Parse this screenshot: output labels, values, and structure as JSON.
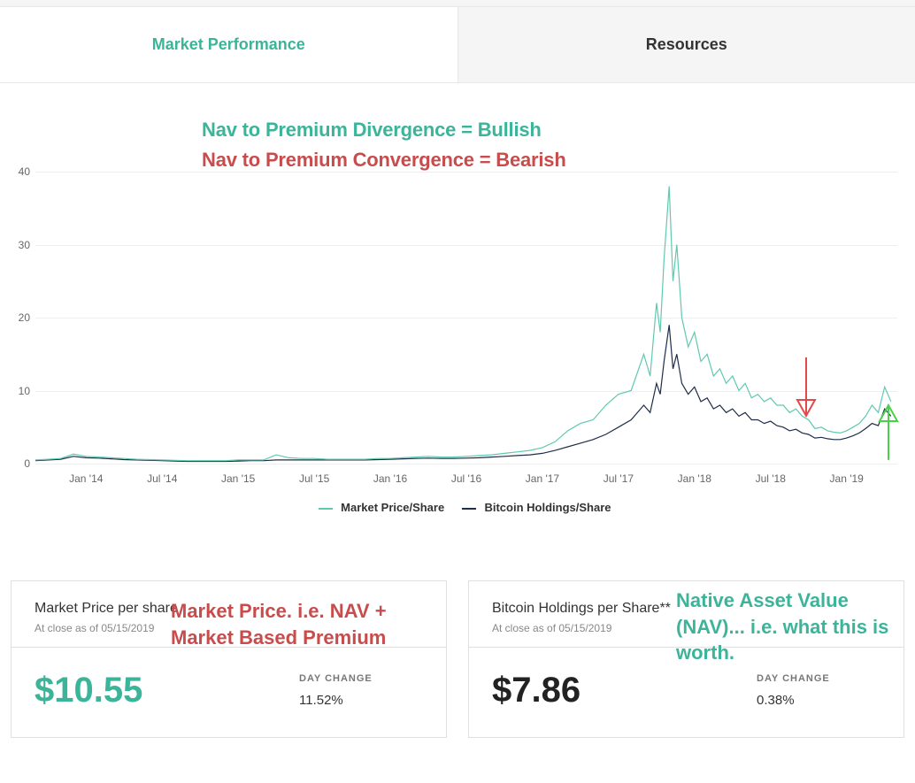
{
  "tabs": {
    "active": "Market Performance",
    "inactive": "Resources"
  },
  "annotations": {
    "bullish": "Nav to Premium Divergence = Bullish",
    "bearish": "Nav to Premium Convergence = Bearish",
    "market_price_note": "Market Price. i.e. NAV + Market Based Premium",
    "nav_note": "Native Asset Value (NAV)... i.e. what this is worth."
  },
  "annotation_colors": {
    "bullish": "#3cb49a",
    "bearish": "#c94c4c",
    "market_price_note": "#c94c4c",
    "nav_note": "#3cb49a"
  },
  "chart": {
    "type": "line",
    "ylim": [
      0,
      40
    ],
    "yticks": [
      0,
      10,
      20,
      30,
      40
    ],
    "x_labels": [
      "Jan '14",
      "Jul '14",
      "Jan '15",
      "Jul '15",
      "Jan '16",
      "Jul '16",
      "Jan '17",
      "Jul '17",
      "Jan '18",
      "Jul '18",
      "Jan '19"
    ],
    "x_span_months": 68,
    "grid_color": "#eeeeee",
    "axis_label_color": "#666666",
    "axis_label_fontsize": 12,
    "background_color": "#ffffff",
    "legend": [
      {
        "label": "Market Price/Share",
        "color": "#5fc9af"
      },
      {
        "label": "Bitcoin Holdings/Share",
        "color": "#1f2d4a"
      }
    ],
    "legend_fontsize": 13,
    "series": {
      "market_price": {
        "color": "#5fc9af",
        "stroke_width": 1.2,
        "data": [
          [
            0,
            0.5
          ],
          [
            1,
            0.6
          ],
          [
            2,
            0.7
          ],
          [
            3,
            1.3
          ],
          [
            4,
            1.0
          ],
          [
            5,
            0.9
          ],
          [
            6,
            0.8
          ],
          [
            7,
            0.7
          ],
          [
            8,
            0.6
          ],
          [
            9,
            0.55
          ],
          [
            10,
            0.5
          ],
          [
            11,
            0.45
          ],
          [
            12,
            0.4
          ],
          [
            13,
            0.4
          ],
          [
            14,
            0.4
          ],
          [
            15,
            0.4
          ],
          [
            16,
            0.5
          ],
          [
            17,
            0.5
          ],
          [
            18,
            0.5
          ],
          [
            19,
            1.2
          ],
          [
            20,
            0.8
          ],
          [
            21,
            0.7
          ],
          [
            22,
            0.7
          ],
          [
            23,
            0.6
          ],
          [
            24,
            0.6
          ],
          [
            25,
            0.6
          ],
          [
            26,
            0.6
          ],
          [
            27,
            0.7
          ],
          [
            28,
            0.7
          ],
          [
            29,
            0.8
          ],
          [
            30,
            0.9
          ],
          [
            31,
            1.0
          ],
          [
            32,
            0.9
          ],
          [
            33,
            0.9
          ],
          [
            34,
            1.0
          ],
          [
            35,
            1.1
          ],
          [
            36,
            1.2
          ],
          [
            37,
            1.4
          ],
          [
            38,
            1.6
          ],
          [
            39,
            1.8
          ],
          [
            40,
            2.2
          ],
          [
            41,
            3.0
          ],
          [
            42,
            4.5
          ],
          [
            43,
            5.5
          ],
          [
            44,
            6.0
          ],
          [
            45,
            8.0
          ],
          [
            46,
            9.5
          ],
          [
            47,
            10.0
          ],
          [
            48,
            15.0
          ],
          [
            48.5,
            12.0
          ],
          [
            49,
            22.0
          ],
          [
            49.3,
            18.0
          ],
          [
            49.6,
            28.0
          ],
          [
            50,
            38.0
          ],
          [
            50.3,
            25.0
          ],
          [
            50.6,
            30.0
          ],
          [
            51,
            20.0
          ],
          [
            51.5,
            16.0
          ],
          [
            52,
            18.0
          ],
          [
            52.5,
            14.0
          ],
          [
            53,
            15.0
          ],
          [
            53.5,
            12.0
          ],
          [
            54,
            13.0
          ],
          [
            54.5,
            11.0
          ],
          [
            55,
            12.0
          ],
          [
            55.5,
            10.0
          ],
          [
            56,
            11.0
          ],
          [
            56.5,
            9.0
          ],
          [
            57,
            9.5
          ],
          [
            57.5,
            8.5
          ],
          [
            58,
            9.0
          ],
          [
            58.5,
            8.0
          ],
          [
            59,
            8.0
          ],
          [
            59.5,
            7.0
          ],
          [
            60,
            7.5
          ],
          [
            60.5,
            6.5
          ],
          [
            61,
            6.0
          ],
          [
            61.5,
            4.8
          ],
          [
            62,
            5.0
          ],
          [
            62.5,
            4.5
          ],
          [
            63,
            4.3
          ],
          [
            63.5,
            4.2
          ],
          [
            64,
            4.5
          ],
          [
            64.5,
            5.0
          ],
          [
            65,
            5.5
          ],
          [
            65.5,
            6.5
          ],
          [
            66,
            8.0
          ],
          [
            66.5,
            7.0
          ],
          [
            67,
            10.5
          ],
          [
            67.5,
            8.5
          ]
        ]
      },
      "holdings": {
        "color": "#1f2d4a",
        "stroke_width": 1.2,
        "data": [
          [
            0,
            0.4
          ],
          [
            1,
            0.5
          ],
          [
            2,
            0.6
          ],
          [
            3,
            1.0
          ],
          [
            4,
            0.8
          ],
          [
            5,
            0.75
          ],
          [
            6,
            0.65
          ],
          [
            7,
            0.55
          ],
          [
            8,
            0.5
          ],
          [
            9,
            0.45
          ],
          [
            10,
            0.4
          ],
          [
            11,
            0.35
          ],
          [
            12,
            0.3
          ],
          [
            13,
            0.3
          ],
          [
            14,
            0.3
          ],
          [
            15,
            0.3
          ],
          [
            16,
            0.35
          ],
          [
            17,
            0.4
          ],
          [
            18,
            0.4
          ],
          [
            19,
            0.5
          ],
          [
            20,
            0.5
          ],
          [
            21,
            0.5
          ],
          [
            22,
            0.5
          ],
          [
            23,
            0.5
          ],
          [
            24,
            0.5
          ],
          [
            25,
            0.5
          ],
          [
            26,
            0.5
          ],
          [
            27,
            0.55
          ],
          [
            28,
            0.6
          ],
          [
            29,
            0.65
          ],
          [
            30,
            0.7
          ],
          [
            31,
            0.75
          ],
          [
            32,
            0.7
          ],
          [
            33,
            0.7
          ],
          [
            34,
            0.75
          ],
          [
            35,
            0.8
          ],
          [
            36,
            0.9
          ],
          [
            37,
            1.0
          ],
          [
            38,
            1.1
          ],
          [
            39,
            1.2
          ],
          [
            40,
            1.4
          ],
          [
            41,
            1.8
          ],
          [
            42,
            2.3
          ],
          [
            43,
            2.8
          ],
          [
            44,
            3.3
          ],
          [
            45,
            4.0
          ],
          [
            46,
            5.0
          ],
          [
            47,
            6.0
          ],
          [
            48,
            8.0
          ],
          [
            48.5,
            7.0
          ],
          [
            49,
            11.0
          ],
          [
            49.3,
            9.5
          ],
          [
            49.6,
            14.0
          ],
          [
            50,
            19.0
          ],
          [
            50.3,
            13.0
          ],
          [
            50.6,
            15.0
          ],
          [
            51,
            11.0
          ],
          [
            51.5,
            9.5
          ],
          [
            52,
            10.5
          ],
          [
            52.5,
            8.5
          ],
          [
            53,
            9.0
          ],
          [
            53.5,
            7.5
          ],
          [
            54,
            8.0
          ],
          [
            54.5,
            7.0
          ],
          [
            55,
            7.5
          ],
          [
            55.5,
            6.5
          ],
          [
            56,
            7.0
          ],
          [
            56.5,
            6.0
          ],
          [
            57,
            6.0
          ],
          [
            57.5,
            5.5
          ],
          [
            58,
            5.8
          ],
          [
            58.5,
            5.2
          ],
          [
            59,
            5.0
          ],
          [
            59.5,
            4.5
          ],
          [
            60,
            4.7
          ],
          [
            60.5,
            4.2
          ],
          [
            61,
            4.0
          ],
          [
            61.5,
            3.5
          ],
          [
            62,
            3.6
          ],
          [
            62.5,
            3.4
          ],
          [
            63,
            3.3
          ],
          [
            63.5,
            3.3
          ],
          [
            64,
            3.5
          ],
          [
            64.5,
            3.8
          ],
          [
            65,
            4.2
          ],
          [
            65.5,
            4.8
          ],
          [
            66,
            5.5
          ],
          [
            66.5,
            5.2
          ],
          [
            67,
            7.5
          ],
          [
            67.5,
            6.5
          ]
        ]
      }
    },
    "arrows": {
      "red": {
        "color": "#e24a4a",
        "x_month": 60.8,
        "y_from": 14.5,
        "y_to": 6.5
      },
      "green": {
        "color": "#4bd04b",
        "x_month": 67.3,
        "y_from": 0.5,
        "y_to": 8.0
      }
    }
  },
  "cards": {
    "left": {
      "title": "Market Price per share",
      "subtitle": "At close as of 05/15/2019",
      "value": "$10.55",
      "value_color": "#3cb49a",
      "change_label": "DAY CHANGE",
      "change_value": "11.52%"
    },
    "right": {
      "title": "Bitcoin Holdings per Share**",
      "subtitle": "At close as of 05/15/2019",
      "value": "$7.86",
      "value_color": "#222222",
      "change_label": "DAY CHANGE",
      "change_value": "0.38%"
    }
  }
}
